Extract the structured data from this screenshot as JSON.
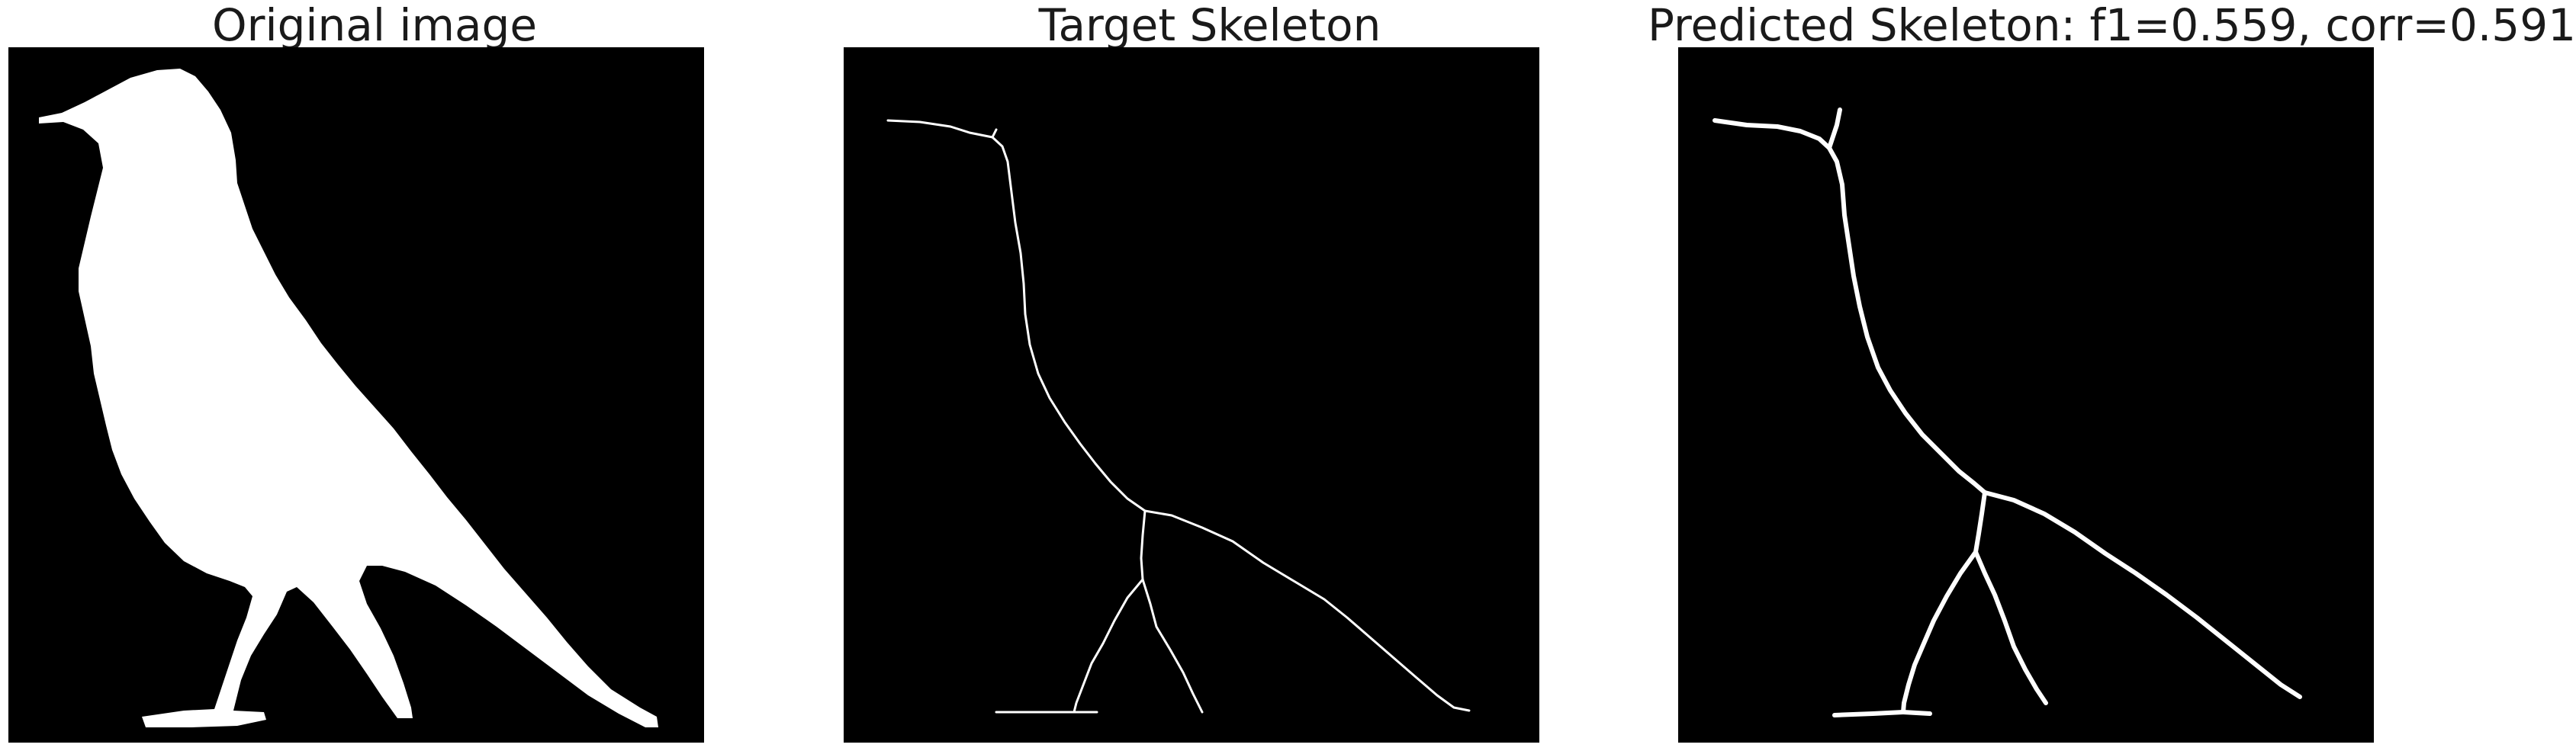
{
  "panels": [
    {
      "title": "Original image",
      "image": "silhouette of a bird, white on black"
    },
    {
      "title": "Target Skeleton",
      "image": "thin white skeleton line of the bird shape on black"
    },
    {
      "title": "Predicted Skeleton: f1=0.559, corr=0.591",
      "image": "thicker white predicted skeleton of the bird shape on black"
    }
  ],
  "colors": {
    "background": "#000000",
    "foreground": "#ffffff",
    "title_text": "#1a1a1a"
  }
}
